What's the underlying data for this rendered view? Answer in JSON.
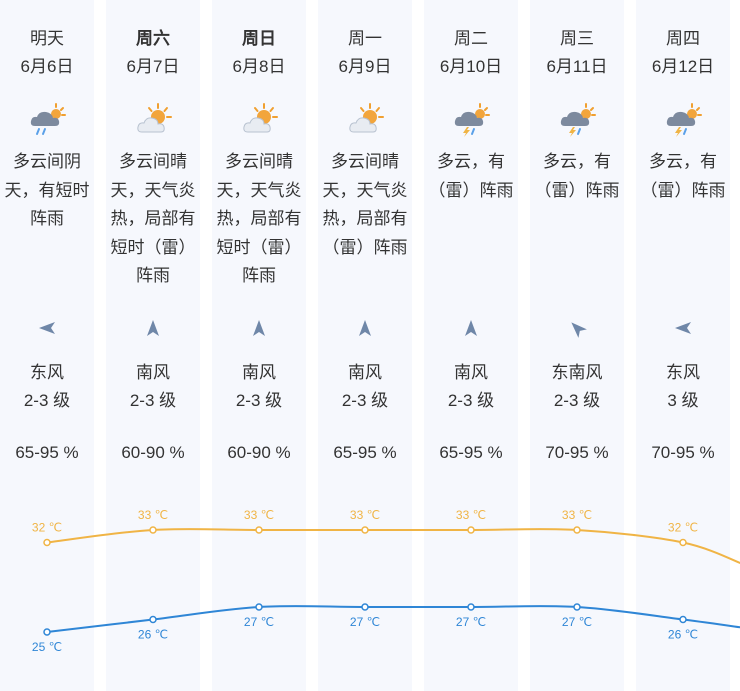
{
  "days": [
    {
      "name": "明天",
      "date": "6月6日",
      "bold": false,
      "icon": "cloudy-shower-icon",
      "desc": "多云间阴天，有短时阵雨",
      "wind_dir_icon": "wind-from-east-icon",
      "wind_name": "东风",
      "wind_level": "2-3 级",
      "humidity": "65-95 %"
    },
    {
      "name": "周六",
      "date": "6月7日",
      "bold": true,
      "icon": "partly-sunny-icon",
      "desc": "多云间晴天，天气炎热，局部有短时（雷）阵雨",
      "wind_dir_icon": "wind-from-south-icon",
      "wind_name": "南风",
      "wind_level": "2-3 级",
      "humidity": "60-90 %"
    },
    {
      "name": "周日",
      "date": "6月8日",
      "bold": true,
      "icon": "partly-sunny-icon",
      "desc": "多云间晴天，天气炎热，局部有短时（雷）阵雨",
      "wind_dir_icon": "wind-from-south-icon",
      "wind_name": "南风",
      "wind_level": "2-3 级",
      "humidity": "60-90 %"
    },
    {
      "name": "周一",
      "date": "6月9日",
      "bold": false,
      "icon": "partly-sunny-icon",
      "desc": "多云间晴天，天气炎热，局部有（雷）阵雨",
      "wind_dir_icon": "wind-from-south-icon",
      "wind_name": "南风",
      "wind_level": "2-3 级",
      "humidity": "65-95 %"
    },
    {
      "name": "周二",
      "date": "6月10日",
      "bold": false,
      "icon": "cloudy-thunder-shower-icon",
      "desc": "多云，有（雷）阵雨",
      "wind_dir_icon": "wind-from-south-icon",
      "wind_name": "南风",
      "wind_level": "2-3 级",
      "humidity": "65-95 %"
    },
    {
      "name": "周三",
      "date": "6月11日",
      "bold": false,
      "icon": "cloudy-thunder-shower-icon",
      "desc": "多云，有（雷）阵雨",
      "wind_dir_icon": "wind-from-southeast-icon",
      "wind_name": "东南风",
      "wind_level": "2-3 级",
      "humidity": "70-95 %"
    },
    {
      "name": "周四",
      "date": "6月12日",
      "bold": false,
      "icon": "cloudy-thunder-shower-icon",
      "desc": "多云，有（雷）阵雨",
      "wind_dir_icon": "wind-from-east-icon",
      "wind_name": "东风",
      "wind_level": "3 级",
      "humidity": "70-95 %"
    }
  ],
  "temps": {
    "high_labels": [
      "32 ℃",
      "33 ℃",
      "33 ℃",
      "33 ℃",
      "33 ℃",
      "33 ℃",
      "32 ℃"
    ],
    "low_labels": [
      "25 ℃",
      "26 ℃",
      "27 ℃",
      "27 ℃",
      "27 ℃",
      "27 ℃",
      "26 ℃"
    ],
    "high": [
      32,
      33,
      33,
      33,
      33,
      33,
      32
    ],
    "low": [
      25,
      26,
      27,
      27,
      27,
      27,
      26
    ],
    "high_color": "#f0b445",
    "low_color": "#2f86d6"
  },
  "colors": {
    "column_bg": "#f6f8fd",
    "arrow": "#6f87a8",
    "text": "#333333"
  }
}
